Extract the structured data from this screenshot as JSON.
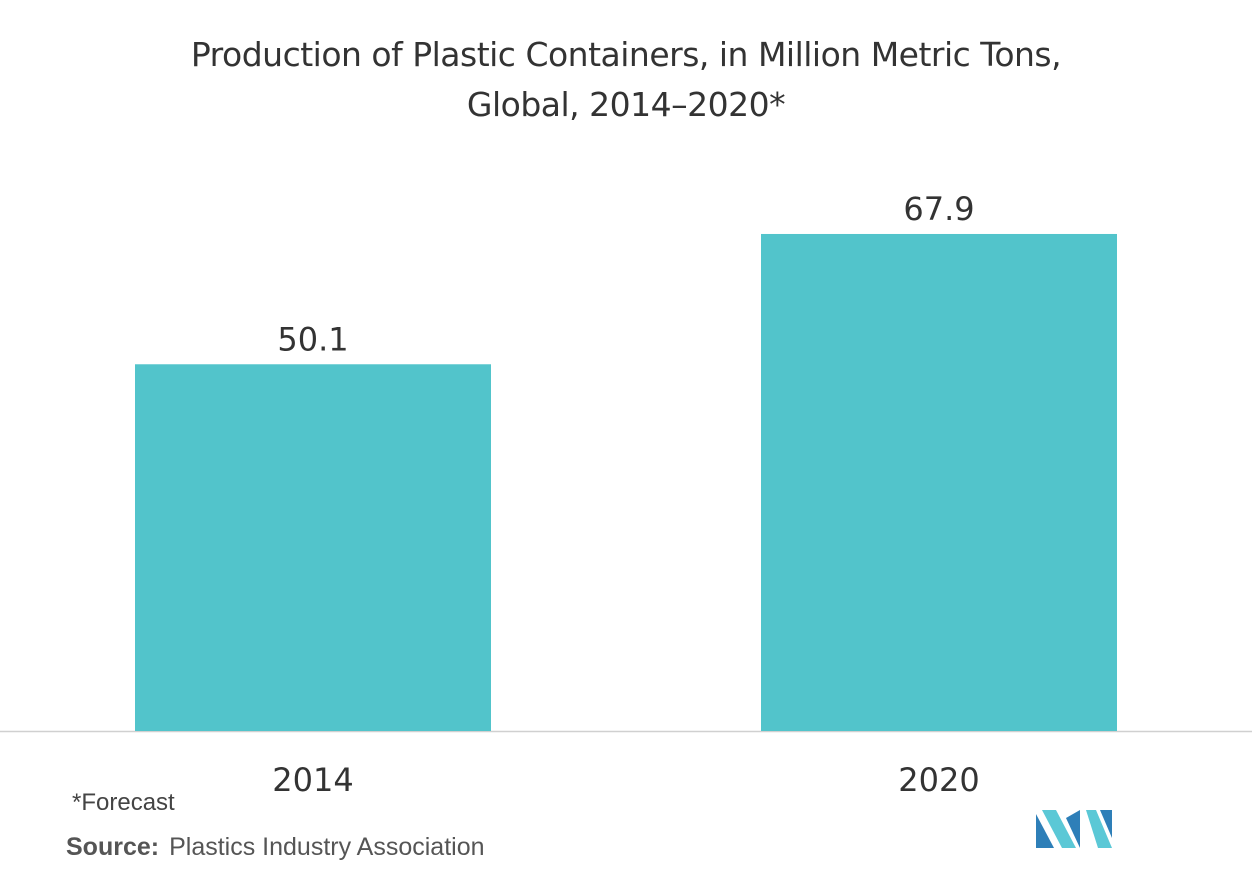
{
  "chart_data": {
    "type": "bar",
    "title_line1": "Production of Plastic Containers, in Million Metric Tons,",
    "title_line2": "Global,  2014–2020*",
    "categories": [
      "2014",
      "2020"
    ],
    "values": [
      50.1,
      67.9
    ],
    "value_labels": [
      "50.1",
      "67.9"
    ],
    "ylim": [
      0,
      75
    ],
    "grid": false,
    "legend": "none",
    "bar_color": "#52C4CB",
    "axis_color": "#D0D0D0"
  },
  "footnote": "*Forecast",
  "source": {
    "label": "Source:",
    "text": "Plastics Industry Association"
  },
  "logo": {
    "icon": "mordor-intelligence-logo",
    "colors": [
      "#2E7FB8",
      "#5BC8D6"
    ]
  }
}
